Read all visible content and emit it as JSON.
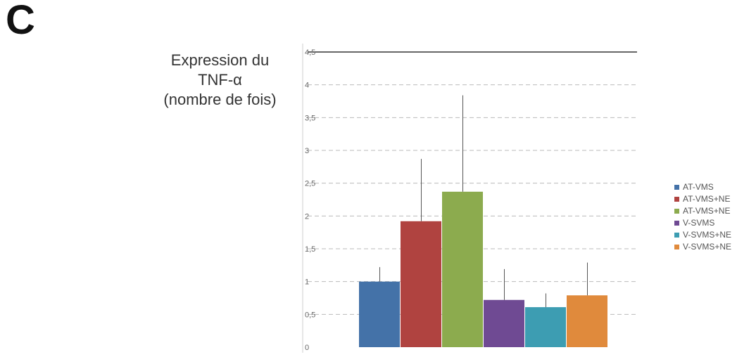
{
  "panel_label": "C",
  "chart_data": {
    "type": "bar",
    "ylabel_lines": [
      "Expression du",
      "TNF-α",
      "(nombre de fois)"
    ],
    "xlabel": "",
    "ylim": [
      0,
      4.5
    ],
    "yticks": [
      0,
      0.5,
      1,
      1.5,
      2,
      2.5,
      3,
      3.5,
      4,
      4.5
    ],
    "ytick_labels": [
      "0",
      "0,5",
      "1",
      "1,5",
      "2",
      "2,5",
      "3",
      "3,5",
      "4",
      "4,5"
    ],
    "grid": true,
    "legend_position": "right",
    "series": [
      {
        "name": "AT-VMS",
        "value": 1.0,
        "error": 0.22,
        "color": "#4472a8"
      },
      {
        "name": "AT-VMS+NE",
        "value": 1.92,
        "error": 0.95,
        "color": "#b04340"
      },
      {
        "name": "AT-VMS+NE",
        "value": 2.37,
        "error": 1.47,
        "color": "#8cab4e"
      },
      {
        "name": "V-SVMS",
        "value": 0.72,
        "error": 0.47,
        "color": "#6f4a93"
      },
      {
        "name": "V-SVMS+NE",
        "value": 0.61,
        "error": 0.21,
        "color": "#3d9db2"
      },
      {
        "name": "V-SVMS+NE",
        "value": 0.79,
        "error": 0.5,
        "color": "#e08a3c"
      }
    ]
  }
}
